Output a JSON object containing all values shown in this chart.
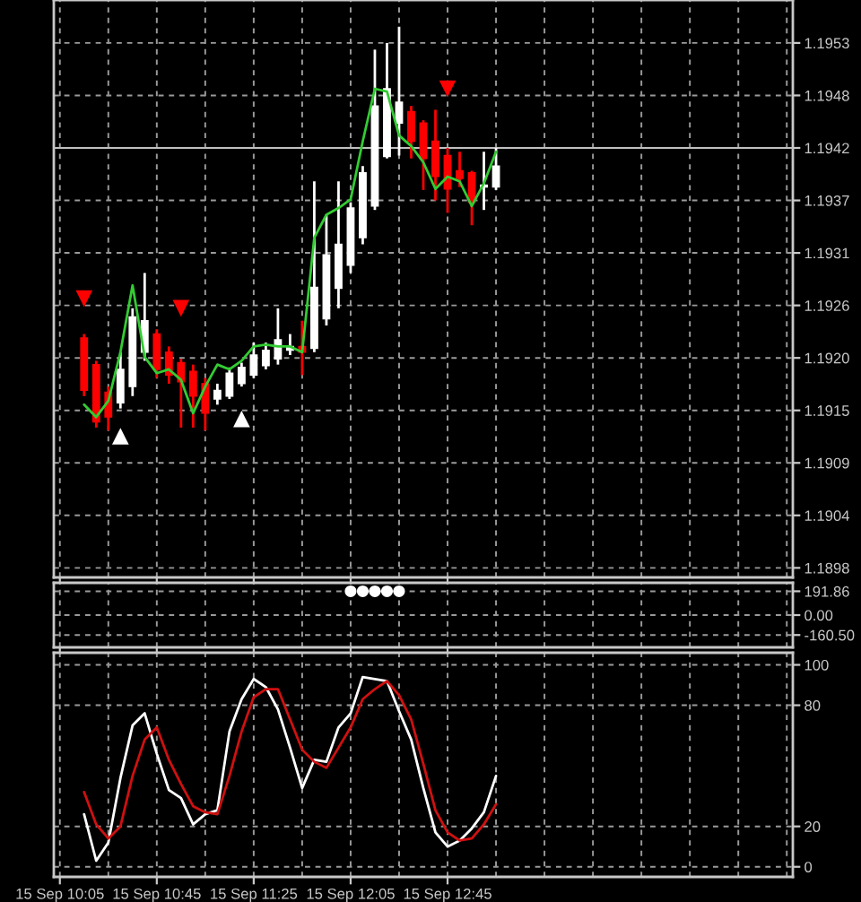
{
  "chart_data": [
    {
      "type": "candlestick",
      "ohlc": [
        null,
        null,
        [
          1.19221,
          1.19225,
          1.1916,
          1.19166
        ],
        [
          1.19193,
          1.19197,
          1.19127,
          1.19133
        ],
        [
          1.19164,
          1.1917,
          1.19124,
          1.19138
        ],
        [
          1.19153,
          1.19206,
          1.19147,
          1.19188
        ],
        [
          1.1917,
          1.19252,
          1.1916,
          1.19243
        ],
        [
          1.19206,
          1.19289,
          1.19197,
          1.19239
        ],
        [
          1.19225,
          1.1923,
          1.19179,
          1.19188
        ],
        [
          1.19206,
          1.19212,
          1.19173,
          1.19182
        ],
        [
          1.19195,
          1.19199,
          1.19127,
          1.19175
        ],
        [
          1.19186,
          1.19193,
          1.19127,
          1.1916
        ],
        [
          1.19173,
          1.19179,
          1.19124,
          1.19142
        ],
        [
          1.19157,
          1.19173,
          1.19151,
          1.19166
        ],
        [
          1.1916,
          1.1919,
          1.19157,
          1.19184
        ],
        [
          1.19173,
          1.19195,
          1.1917,
          1.1919
        ],
        [
          1.19182,
          1.19216,
          1.19179,
          1.19203
        ],
        [
          1.19192,
          1.19216,
          1.19188,
          1.19208
        ],
        [
          1.19199,
          1.19252,
          1.19193,
          1.19219
        ],
        [
          1.19208,
          1.19225,
          1.19203,
          1.19212
        ],
        [
          1.19212,
          1.19239,
          1.19182,
          1.19206
        ],
        [
          1.1921,
          1.19385,
          1.19206,
          1.19274
        ],
        [
          1.19241,
          1.1935,
          1.19234,
          1.19308
        ],
        [
          1.19273,
          1.19385,
          1.19252,
          1.19319
        ],
        [
          1.19297,
          1.19363,
          1.19289,
          1.19357
        ],
        [
          1.19326,
          1.19401,
          1.19319,
          1.19394
        ],
        [
          1.19359,
          1.19523,
          1.19355,
          1.19464
        ],
        [
          1.19411,
          1.1953,
          1.19409,
          1.19482
        ],
        [
          1.19446,
          1.19547,
          1.19412,
          1.19468
        ],
        [
          1.19458,
          1.19464,
          1.19409,
          1.19427
        ],
        [
          1.19446,
          1.19449,
          1.19376,
          1.19409
        ],
        [
          1.19427,
          1.1946,
          1.19365,
          1.1939
        ],
        [
          1.19412,
          1.1942,
          1.19352,
          1.19377
        ],
        [
          1.19396,
          1.19416,
          1.19379,
          1.19388
        ],
        [
          1.19394,
          1.19396,
          1.19339,
          1.19363
        ],
        [
          1.19379,
          1.19416,
          1.19355,
          1.19381
        ],
        [
          1.19379,
          1.1942,
          1.19376,
          1.19401
        ],
        null,
        null,
        null,
        null,
        null,
        null,
        null,
        null,
        null,
        null,
        null,
        null,
        null,
        null,
        null,
        null,
        null,
        null,
        null,
        null,
        null,
        null,
        null,
        null
      ],
      "colors": [
        null,
        null,
        "#ff0000",
        "#ff0000",
        "#ff0000",
        "#ffffff",
        "#ffffff",
        "#ffffff",
        "#ff0000",
        "#ff0000",
        "#ff0000",
        "#ff0000",
        "#ff0000",
        "#ffffff",
        "#ffffff",
        "#ffffff",
        "#ffffff",
        "#ffffff",
        "#ffffff",
        "#ffffff",
        "#ff0000",
        "#ffffff",
        "#ffffff",
        "#ffffff",
        "#ffffff",
        "#ffffff",
        "#ffffff",
        "#ffffff",
        "#ffffff",
        "#ff0000",
        "#ff0000",
        "#ff0000",
        "#ff0000",
        "#ff0000",
        "#ff0000",
        "#ffffff",
        "#ffffff",
        null,
        null,
        null,
        null,
        null,
        null,
        null,
        null,
        null,
        null,
        null,
        null,
        null,
        null,
        null,
        null,
        null,
        null,
        null,
        null,
        null,
        null,
        null,
        null
      ],
      "series": [
        {
          "type": "line",
          "color": "#33cc33",
          "values": [
            null,
            null,
            1.19151,
            1.19138,
            1.19155,
            1.19206,
            1.19276,
            1.19201,
            1.19184,
            1.19188,
            1.19177,
            1.19142,
            1.1917,
            1.19193,
            1.19188,
            1.19197,
            1.19212,
            1.19214,
            1.19212,
            1.19212,
            1.19206,
            1.19326,
            1.1935,
            1.19357,
            1.19366,
            1.19427,
            1.19482,
            1.19479,
            1.19433,
            1.19422,
            1.19405,
            1.19377,
            1.1939,
            1.19385,
            1.19359,
            1.19383,
            1.19416,
            null,
            null,
            null,
            null,
            null,
            null,
            null,
            null,
            null,
            null,
            null,
            null,
            null,
            null,
            null,
            null,
            null,
            null,
            null,
            null,
            null,
            null,
            null,
            null
          ]
        },
        {
          "type": "scatter",
          "marker": "triangle",
          "color": "#ff0000",
          "values": [
            null,
            null,
            1.19262,
            null,
            null,
            null,
            null,
            null,
            null,
            null,
            1.19252,
            null,
            null,
            null,
            null,
            null,
            null,
            null,
            null,
            null,
            null,
            null,
            null,
            null,
            null,
            null,
            null,
            null,
            null,
            null,
            null,
            null,
            1.19482,
            null,
            null,
            null,
            null,
            null,
            null,
            null,
            null,
            null,
            null,
            null,
            null,
            null,
            null,
            null,
            null,
            null,
            null,
            null,
            null,
            null,
            null,
            null,
            null,
            null,
            null,
            null,
            null
          ]
        },
        {
          "type": "scatter",
          "marker": "triangle",
          "color": "#ffffff",
          "values": [
            null,
            null,
            null,
            null,
            null,
            1.19118,
            null,
            null,
            null,
            null,
            null,
            null,
            null,
            null,
            null,
            1.19136,
            null,
            null,
            null,
            null,
            null,
            null,
            null,
            null,
            null,
            null,
            null,
            null,
            null,
            null,
            null,
            null,
            null,
            null,
            null,
            null,
            null,
            null,
            null,
            null,
            null,
            null,
            null,
            null,
            null,
            null,
            null,
            null,
            null,
            null,
            null,
            null,
            null,
            null,
            null,
            null,
            null,
            null,
            null,
            null,
            null
          ]
        }
      ],
      "ylim": [
        1.1897,
        1.19575
      ],
      "yticks": [
        {
          "value": 1.1898,
          "label": "1.1898"
        },
        {
          "value": 1.19035,
          "label": "1.1904"
        },
        {
          "value": 1.1909,
          "label": "1.1909"
        },
        {
          "value": 1.19145,
          "label": "1.1915"
        },
        {
          "value": 1.192,
          "label": "1.1920"
        },
        {
          "value": 1.19255,
          "label": "1.1926"
        },
        {
          "value": 1.1931,
          "label": "1.1931"
        },
        {
          "value": 1.19365,
          "label": "1.1937"
        },
        {
          "value": 1.1942,
          "label": "1.1942"
        },
        {
          "value": 1.19475,
          "label": "1.1948"
        },
        {
          "value": 1.1953,
          "label": "1.1953"
        }
      ],
      "ref_lines": [
        {
          "axis": "y",
          "value": 1.1942,
          "color": "#c0c0c0"
        }
      ],
      "grid": true,
      "tick_labels": "y"
    },
    {
      "type": "scatter",
      "marker": "circle",
      "color": "#ffffff",
      "values": [
        null,
        null,
        null,
        null,
        null,
        null,
        null,
        null,
        null,
        null,
        null,
        null,
        null,
        null,
        null,
        null,
        null,
        null,
        null,
        null,
        null,
        null,
        null,
        null,
        191.86,
        191.86,
        191.86,
        191.86,
        191.86,
        null,
        null,
        null,
        null,
        null,
        null,
        null,
        null,
        null,
        null,
        null,
        null,
        null,
        null,
        null,
        null,
        null,
        null,
        null,
        null,
        null,
        null,
        null,
        null,
        null,
        null,
        null,
        null,
        null,
        null,
        null,
        null
      ],
      "ylim": [
        -260,
        260
      ],
      "yticks": [
        191.86,
        {
          "value": 0,
          "label": "0.00"
        },
        {
          "value": -160.5,
          "label": "-160.50"
        }
      ],
      "grid": true,
      "tick_labels": "y"
    },
    {
      "type": "line",
      "categories": [
        "15 Sep 10:05",
        null,
        null,
        null,
        null,
        null,
        null,
        null,
        "15 Sep 10:45",
        null,
        null,
        null,
        null,
        null,
        null,
        null,
        "15 Sep 11:25",
        null,
        null,
        null,
        null,
        null,
        null,
        null,
        "15 Sep 12:05",
        null,
        null,
        null,
        null,
        null,
        null,
        null,
        "15 Sep 12:45",
        null,
        null,
        null,
        null,
        null,
        null,
        null,
        null,
        null,
        null,
        null,
        null,
        null,
        null,
        null,
        null,
        null,
        null,
        null,
        null,
        null,
        null,
        null,
        null,
        null,
        null,
        null,
        null
      ],
      "series": [
        {
          "color": "#ffffff",
          "values": [
            null,
            null,
            26,
            3,
            12,
            44,
            70,
            76,
            56,
            38,
            34,
            21,
            26,
            28,
            67,
            83,
            93,
            89,
            78,
            59,
            39,
            53,
            52,
            69,
            76,
            94,
            93,
            92,
            77,
            63,
            39,
            17,
            10,
            13,
            19,
            27,
            45,
            null,
            null,
            null,
            null,
            null,
            null,
            null,
            null,
            null,
            null,
            null,
            null,
            null,
            null,
            null,
            null,
            null,
            null,
            null,
            null,
            null,
            null,
            null,
            null
          ]
        },
        {
          "color": "#d01010",
          "values": [
            null,
            null,
            37,
            21,
            14,
            20,
            45,
            63,
            69,
            53,
            41,
            30,
            27,
            26,
            45,
            67,
            84,
            88,
            88,
            73,
            58,
            52,
            49,
            59,
            69,
            83,
            88,
            92,
            85,
            73,
            51,
            28,
            17,
            13,
            14,
            21,
            31,
            null,
            null,
            null,
            null,
            null,
            null,
            null,
            null,
            null,
            null,
            null,
            null,
            null,
            null,
            null,
            null,
            null,
            null,
            null,
            null,
            null,
            null,
            null,
            null
          ]
        }
      ],
      "ylim": [
        -5,
        106
      ],
      "yticks": [
        0,
        20,
        80,
        100
      ],
      "grid": true
    }
  ]
}
